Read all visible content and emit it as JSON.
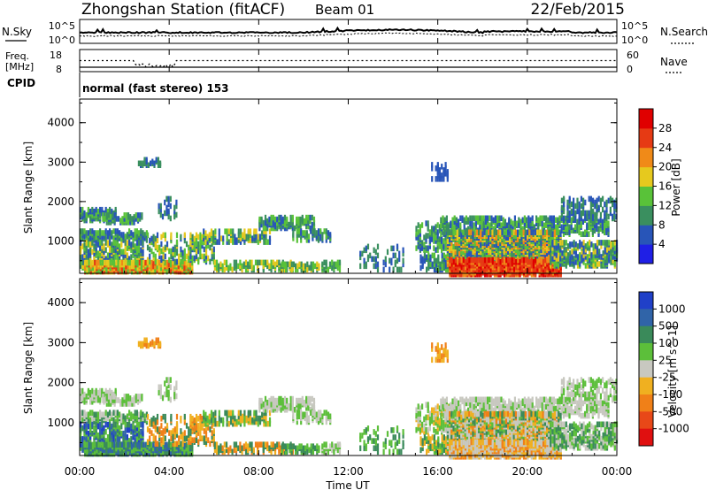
{
  "header": {
    "title": "Zhongshan Station (fitACF)",
    "beam": "Beam 01",
    "date": "22/Feb/2015"
  },
  "noise_panel": {
    "left_label": "N.Sky",
    "right_label": "N.Search",
    "left_ticks": [
      "10^5",
      "10^0"
    ],
    "right_ticks": [
      "10^5",
      "10^0"
    ]
  },
  "freq_panel": {
    "left_label_line1": "Freq.",
    "left_label_line2": "[MHz]",
    "left_ticks": [
      "18",
      "8"
    ],
    "right_label": "Nave",
    "right_ticks": [
      "60",
      "0"
    ]
  },
  "cpid": {
    "label": "CPID",
    "text": "normal (fast stereo) 153"
  },
  "x_axis": {
    "label": "Time UT",
    "ticks": [
      "00:00",
      "04:00",
      "08:00",
      "12:00",
      "16:00",
      "20:00",
      "00:00"
    ]
  },
  "chart_data": [
    {
      "type": "heatmap",
      "name": "power",
      "ylabel": "Slant Range [km]",
      "yticks": [
        "1000",
        "2000",
        "3000",
        "4000"
      ],
      "ylim": [
        180,
        4600
      ],
      "xlim_hours": [
        0,
        24
      ],
      "colorbar_label": "Power [dB]",
      "colorbar_ticks": [
        "4",
        "8",
        "12",
        "16",
        "20",
        "24",
        "28"
      ],
      "colors": [
        "#1f1fe6",
        "#2855b8",
        "#3a8f5f",
        "#59c239",
        "#e6c91e",
        "#f08a18",
        "#e63a14",
        "#e00000"
      ]
    },
    {
      "type": "heatmap",
      "name": "velocity",
      "ylabel": "Slant Range [km]",
      "yticks": [
        "1000",
        "2000",
        "3000",
        "4000"
      ],
      "ylim": [
        180,
        4600
      ],
      "xlim_hours": [
        0,
        24
      ],
      "colorbar_label": "Velocity [m s^-1]",
      "colorbar_ticks": [
        "1000",
        "500",
        "100",
        "25",
        "-25",
        "-100",
        "-500",
        "-1000"
      ],
      "colors": [
        "#2040c8",
        "#3064a8",
        "#3a8a5a",
        "#5cbf3a",
        "#c8c8c0",
        "#f0b020",
        "#f08018",
        "#e84818",
        "#e01010"
      ]
    }
  ]
}
